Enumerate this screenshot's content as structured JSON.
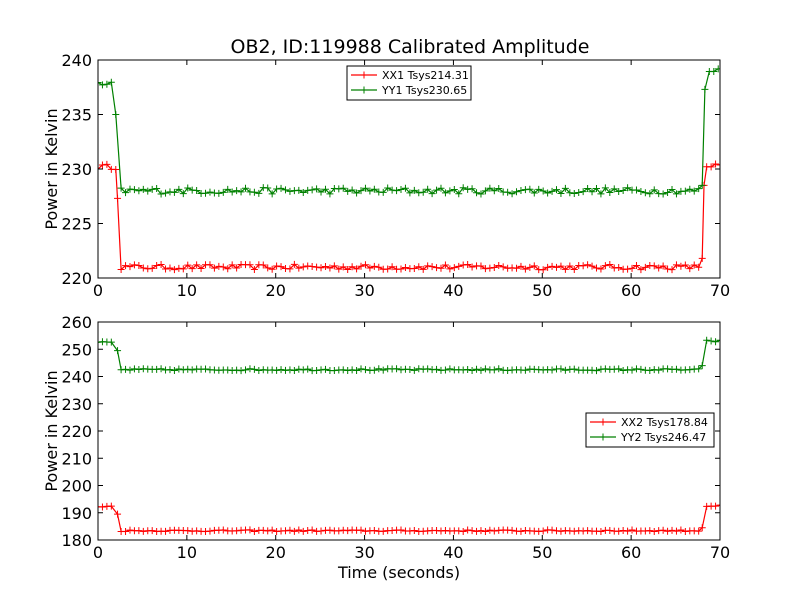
{
  "title": "OB2, ID:119988 Calibrated Amplitude",
  "colors": {
    "xx": "#ff0000",
    "yy": "#008000",
    "axis": "#000000",
    "background": "#ffffff"
  },
  "chart_data": [
    {
      "type": "line",
      "title": "OB2, ID:119988 Calibrated Amplitude",
      "xlabel": "",
      "ylabel": "Power in Kelvin",
      "xlim": [
        0,
        70
      ],
      "ylim": [
        220,
        240
      ],
      "xticks": [
        "0",
        "10",
        "20",
        "30",
        "40",
        "50",
        "60",
        "70"
      ],
      "yticks": [
        "220",
        "225",
        "230",
        "235",
        "240"
      ],
      "grid": false,
      "legend_position": "top-center",
      "marker": "+",
      "series": [
        {
          "name": "XX1 Tsys214.31",
          "color": "#ff0000",
          "segments": [
            {
              "x_start": 0.0,
              "x_end": 2.0,
              "y": 230.2
            },
            {
              "x_start": 2.6,
              "x_end": 67.6,
              "y": 221.0
            },
            {
              "x_start": 68.5,
              "x_end": 70.0,
              "y": 230.3
            }
          ],
          "transitions": [
            {
              "x": 2.2,
              "y": 227.3
            },
            {
              "x": 68.0,
              "y": 221.8
            },
            {
              "x": 68.2,
              "y": 228.5
            }
          ],
          "step": 0.5,
          "noise": 0.25
        },
        {
          "name": "YY1 Tsys230.65",
          "color": "#008000",
          "segments": [
            {
              "x_start": 0.0,
              "x_end": 1.8,
              "y": 237.7
            },
            {
              "x_start": 2.6,
              "x_end": 67.6,
              "y": 228.0
            },
            {
              "x_start": 68.8,
              "x_end": 70.0,
              "y": 239.0
            }
          ],
          "transitions": [
            {
              "x": 2.0,
              "y": 235.0
            },
            {
              "x": 68.0,
              "y": 228.5
            },
            {
              "x": 68.3,
              "y": 237.3
            }
          ],
          "step": 0.5,
          "noise": 0.3
        }
      ]
    },
    {
      "type": "line",
      "title": "",
      "xlabel": "Time (seconds)",
      "ylabel": "Power in Kelvin",
      "xlim": [
        0,
        70
      ],
      "ylim": [
        180,
        260
      ],
      "xticks": [
        "0",
        "10",
        "20",
        "30",
        "40",
        "50",
        "60",
        "70"
      ],
      "yticks": [
        "180",
        "190",
        "200",
        "210",
        "220",
        "230",
        "240",
        "250",
        "260"
      ],
      "grid": false,
      "legend_position": "center-right",
      "marker": "+",
      "series": [
        {
          "name": "XX2 Tsys178.84",
          "color": "#ff0000",
          "segments": [
            {
              "x_start": 0.0,
              "x_end": 1.8,
              "y": 192.3
            },
            {
              "x_start": 2.6,
              "x_end": 67.6,
              "y": 183.4
            },
            {
              "x_start": 68.5,
              "x_end": 70.0,
              "y": 192.5
            }
          ],
          "transitions": [
            {
              "x": 2.2,
              "y": 189.5
            },
            {
              "x": 68.0,
              "y": 184.5
            }
          ],
          "step": 0.5,
          "noise": 0.3
        },
        {
          "name": "YY2 Tsys246.47",
          "color": "#008000",
          "segments": [
            {
              "x_start": 0.0,
              "x_end": 1.8,
              "y": 252.5
            },
            {
              "x_start": 2.6,
              "x_end": 67.6,
              "y": 242.5
            },
            {
              "x_start": 68.5,
              "x_end": 70.0,
              "y": 253.0
            }
          ],
          "transitions": [
            {
              "x": 2.2,
              "y": 249.5
            },
            {
              "x": 68.0,
              "y": 244.0
            }
          ],
          "step": 0.5,
          "noise": 0.35
        }
      ]
    }
  ]
}
